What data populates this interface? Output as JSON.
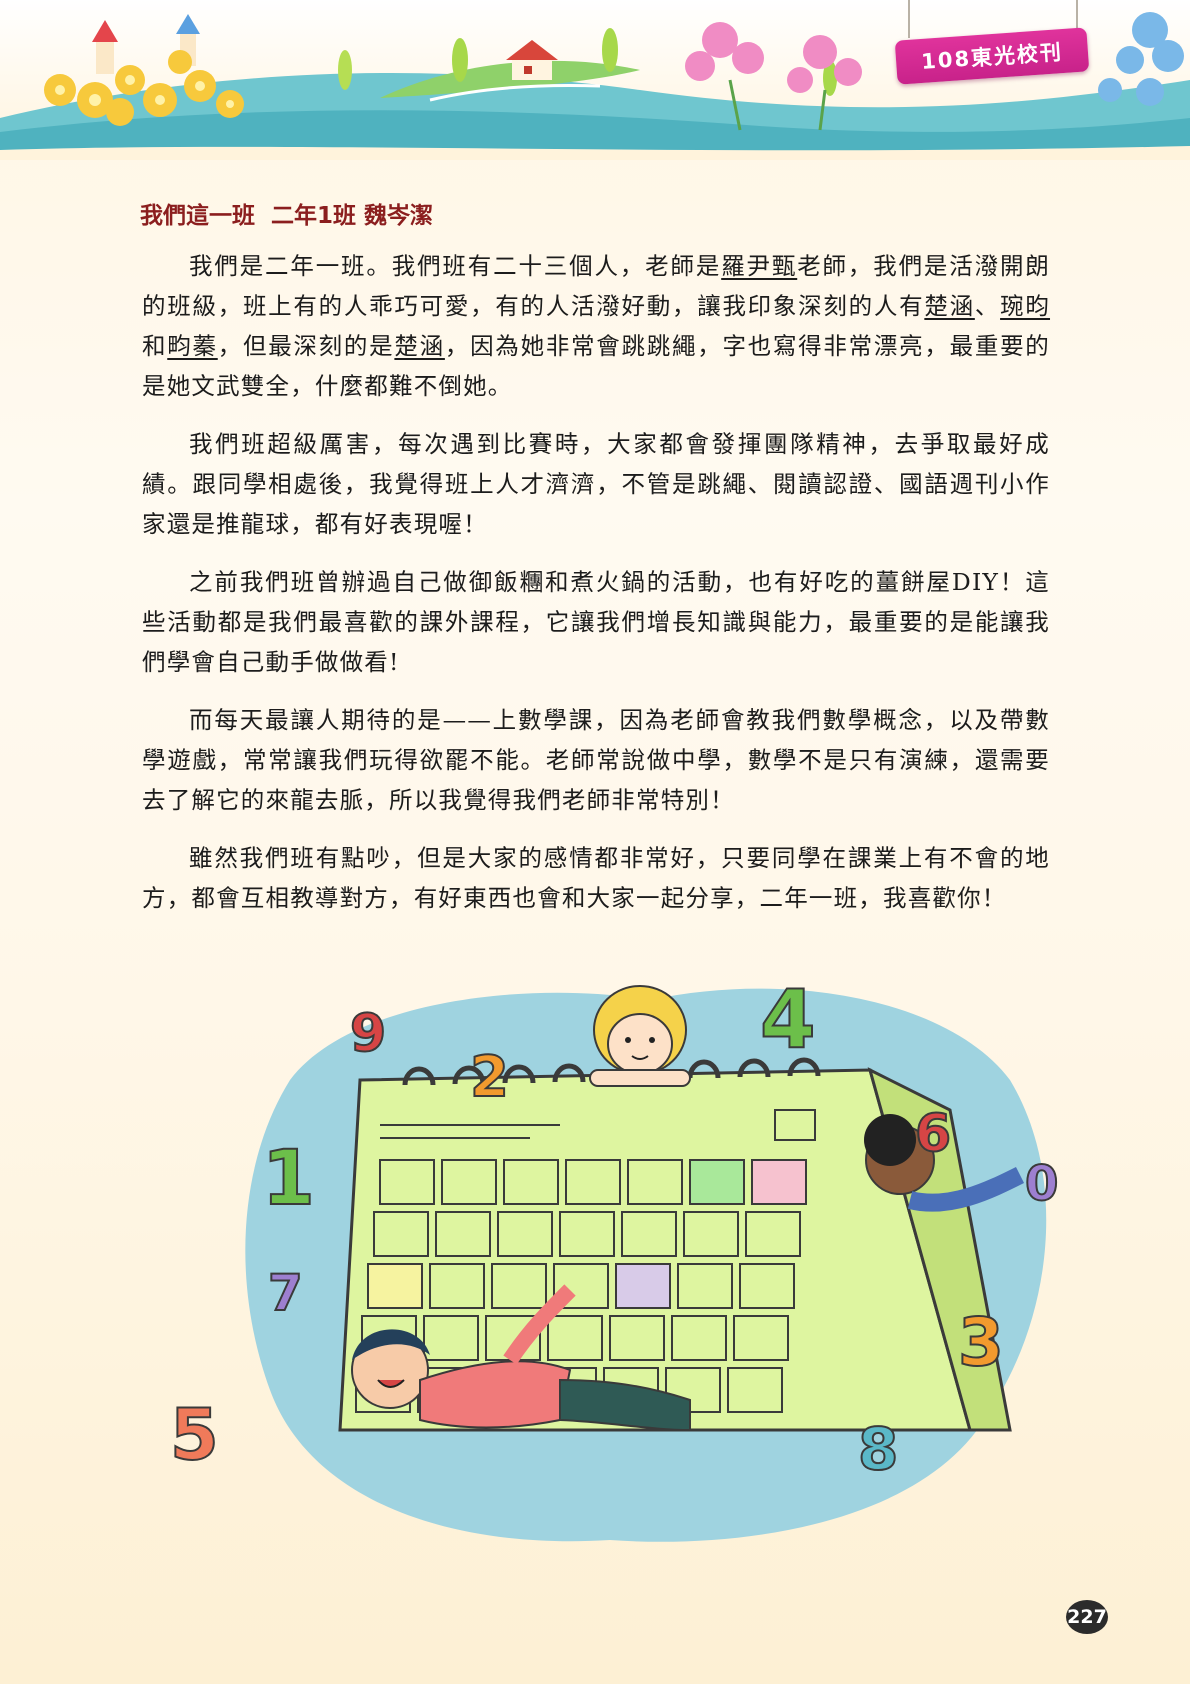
{
  "header": {
    "banner": "108東光校刊"
  },
  "article": {
    "title": "我們這一班  二年1班 魏岑潔",
    "paragraphs": [
      [
        "我們是二年一班。我們班有二十三個人，老師是",
        {
          "u": "羅尹甄"
        },
        "老師，我們是活潑開朗的班級，班上有的人乖巧可愛，有的人活潑好動，讓我印象深刻的人有",
        {
          "u": "楚涵"
        },
        "、",
        {
          "u": "琬昀"
        },
        "和",
        {
          "u": "畇蓁"
        },
        "，但最深刻的是",
        {
          "u": "楚涵"
        },
        "，因為她非常會跳跳繩，字也寫得非常漂亮，最重要的是她文武雙全，什麼都難不倒她。"
      ],
      [
        "我們班超級厲害，每次遇到比賽時，大家都會發揮團隊精神，去爭取最好成績。跟同學相處後，我覺得班上人才濟濟，不管是跳繩、閱讀認證、國語週刊小作家還是推龍球，都有好表現喔！"
      ],
      [
        "之前我們班曾辦過自己做御飯糰和煮火鍋的活動，也有好吃的薑餅屋DIY！這些活動都是我們最喜歡的課外課程，它讓我們增長知識與能力，最重要的是能讓我們學會自己動手做做看!"
      ],
      [
        "而每天最讓人期待的是——上數學課，因為老師會教我們數學概念，以及帶數學遊戲，常常讓我們玩得欲罷不能。老師常說做中學，數學不是只有演練，還需要去了解它的來龍去脈，所以我覺得我們老師非常特別！"
      ],
      [
        "雖然我們班有點吵，但是大家的感情都非常好，只要同學在課業上有不會的地方，都會互相教導對方，有好東西也會和大家一起分享，二年一班，我喜歡你！"
      ]
    ]
  },
  "illustration": {
    "numbers": [
      "9",
      "2",
      "4",
      "6",
      "0",
      "1",
      "7",
      "3",
      "5",
      "8"
    ]
  },
  "page_number": "227",
  "colors": {
    "title": "#8b1e1e",
    "banner": "#d42b93",
    "calendar": "#def5a0",
    "sky_blob": "#9fd3e0"
  }
}
